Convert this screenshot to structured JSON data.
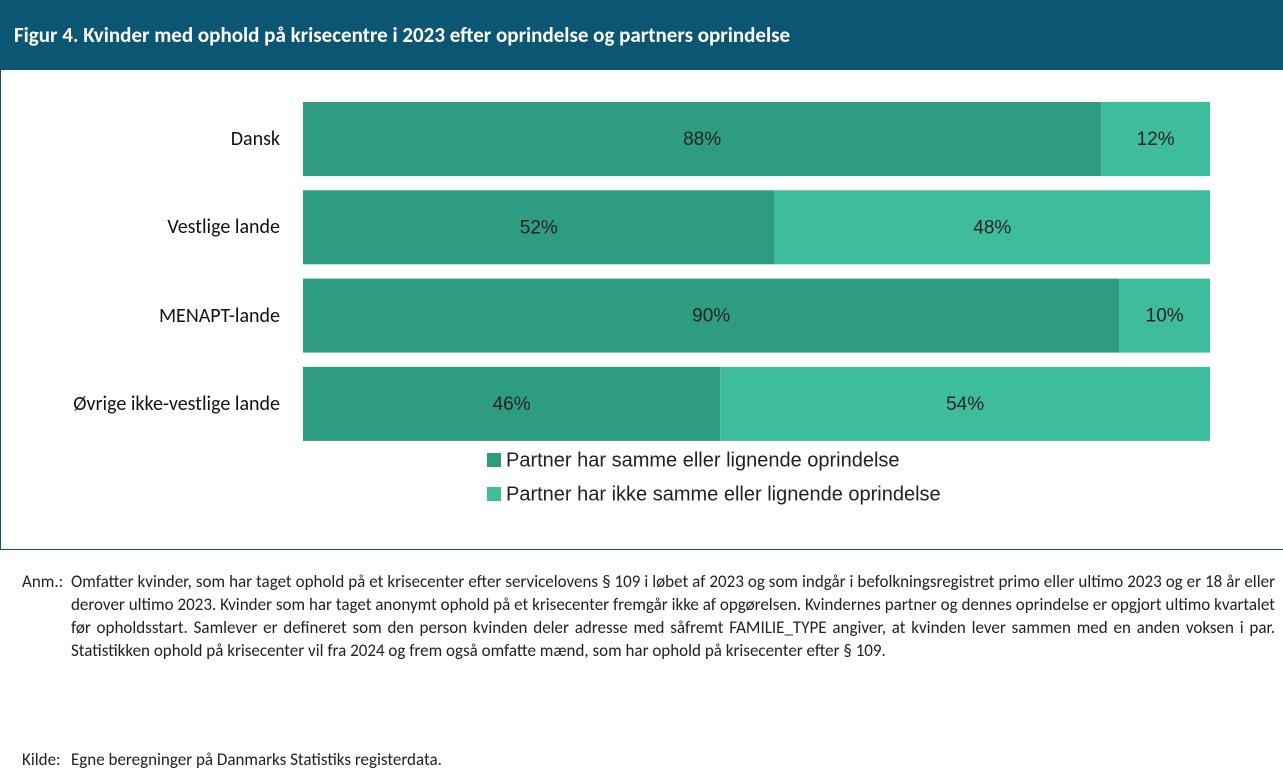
{
  "chart_data": {
    "type": "stacked_bar_horizontal",
    "title": "Figur 4. Kvinder med ophold på krisecentre i 2023 efter oprindelse og partners oprindelse",
    "categories": [
      "Dansk",
      "Vestlige lande",
      "MENAPT-lande",
      "Øvrige ikke-vestlige lande"
    ],
    "series": [
      {
        "name": "Partner har samme eller lignende oprindelse",
        "color": "#2e9c80",
        "values": [
          88,
          52,
          90,
          46
        ],
        "value_labels": [
          "88%",
          "52%",
          "90%",
          "46%"
        ]
      },
      {
        "name": "Partner har ikke samme eller lignende oprindelse",
        "color": "#3dbd9c",
        "values": [
          12,
          48,
          10,
          54
        ],
        "value_labels": [
          "12%",
          "48%",
          "10%",
          "54%"
        ]
      }
    ],
    "xlim": [
      0,
      100
    ],
    "legend": "bottom"
  },
  "notes": {
    "anm_label": "Anm.:",
    "anm_text": "Omfatter kvinder, som har taget ophold på et krisecenter efter servicelovens § 109 i løbet af 2023 og som indgår i befolk­ningsregistret primo eller ultimo 2023 og er 18 år eller derover ultimo 2023. Kvinder som har taget anonymt ophold på et krisecenter fremgår ikke af opgørelsen. Kvindernes partner og dennes oprindelse er opgjort ultimo kvartalet før opholds­start. Samlever er defineret som den person kvinden deler adresse med såfremt FAMILIE_TYPE angiver, at kvinden lever sammen med en anden voksen i par. Statistikken ophold på krisecenter vil fra 2024 og frem også omfatte mænd, som har ophold på krisecenter efter § 109.",
    "kilde_label": "Kilde:",
    "kilde_text": "Egne beregninger på Danmarks Statistiks registerdata."
  }
}
